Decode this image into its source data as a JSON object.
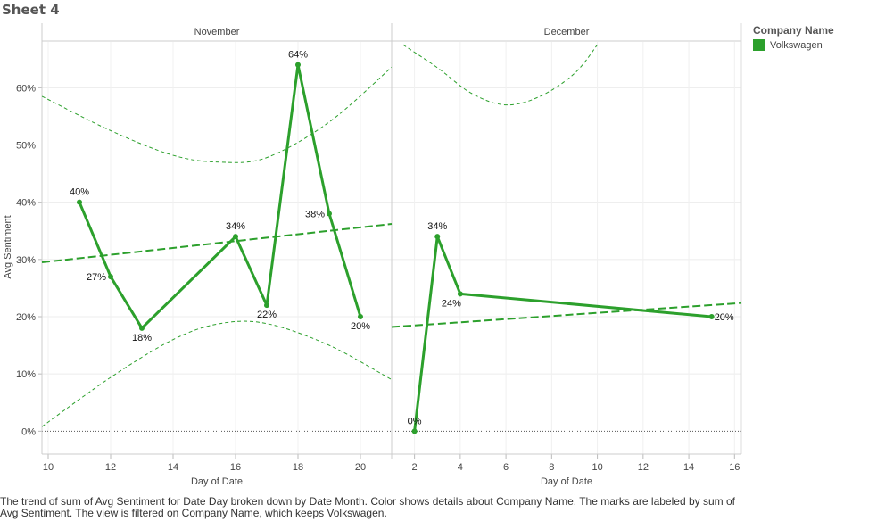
{
  "sheet_title": "Sheet 4",
  "legend": {
    "title": "Company Name",
    "items": [
      {
        "label": "Volkswagen",
        "color": "#2ca02c"
      }
    ]
  },
  "caption": "The trend of sum of Avg Sentiment for Date Day broken down by Date Month.  Color shows details about Company Name.  The marks are labeled by sum of Avg Sentiment. The view is filtered on Company Name, which keeps Volkswagen.",
  "chart_data": {
    "type": "line",
    "ylabel": "Avg Sentiment",
    "xlabel": "Day of Date",
    "ylim": [
      -0.04,
      0.68
    ],
    "yticks": [
      0,
      0.1,
      0.2,
      0.3,
      0.4,
      0.5,
      0.6
    ],
    "ytick_labels": [
      "0%",
      "10%",
      "20%",
      "30%",
      "40%",
      "50%",
      "60%"
    ],
    "grid": true,
    "legend_position": "top-right",
    "series_color": "#2ca02c",
    "panels": [
      {
        "name": "November",
        "xlim": [
          9.8,
          21
        ],
        "xticks": [
          10,
          12,
          14,
          16,
          18,
          20
        ],
        "points": [
          {
            "x": 11,
            "y": 0.4,
            "label": "40%"
          },
          {
            "x": 12,
            "y": 0.27,
            "label": "27%"
          },
          {
            "x": 13,
            "y": 0.18,
            "label": "18%"
          },
          {
            "x": 16,
            "y": 0.34,
            "label": "34%"
          },
          {
            "x": 17,
            "y": 0.22,
            "label": "22%"
          },
          {
            "x": 18,
            "y": 0.64,
            "label": "64%"
          },
          {
            "x": 19,
            "y": 0.38,
            "label": "38%"
          },
          {
            "x": 20,
            "y": 0.2,
            "label": "20%"
          }
        ],
        "trend": {
          "start": [
            9.8,
            0.295
          ],
          "end": [
            21,
            0.362
          ]
        },
        "band_upper": [
          [
            9.8,
            0.585
          ],
          [
            12,
            0.525
          ],
          [
            14,
            0.482
          ],
          [
            15.5,
            0.47
          ],
          [
            17,
            0.478
          ],
          [
            19,
            0.54
          ],
          [
            21,
            0.636
          ]
        ],
        "band_lower": [
          [
            9.8,
            0.008
          ],
          [
            12,
            0.094
          ],
          [
            14,
            0.16
          ],
          [
            15.5,
            0.188
          ],
          [
            17,
            0.188
          ],
          [
            19,
            0.15
          ],
          [
            21,
            0.09
          ]
        ]
      },
      {
        "name": "December",
        "xlim": [
          1,
          16.3
        ],
        "xticks": [
          2,
          4,
          6,
          8,
          10,
          12,
          14,
          16
        ],
        "points": [
          {
            "x": 2,
            "y": 0.0,
            "label": "0%"
          },
          {
            "x": 3,
            "y": 0.34,
            "label": "34%"
          },
          {
            "x": 4,
            "y": 0.24,
            "label": "24%"
          },
          {
            "x": 15,
            "y": 0.2,
            "label": "20%"
          }
        ],
        "trend": {
          "start": [
            1,
            0.182
          ],
          "end": [
            16.3,
            0.224
          ]
        },
        "band_upper": [
          [
            1.5,
            0.675
          ],
          [
            3,
            0.635
          ],
          [
            4.5,
            0.59
          ],
          [
            6,
            0.57
          ],
          [
            7.5,
            0.585
          ],
          [
            9,
            0.625
          ],
          [
            10,
            0.675
          ]
        ],
        "band_lower": []
      }
    ]
  }
}
